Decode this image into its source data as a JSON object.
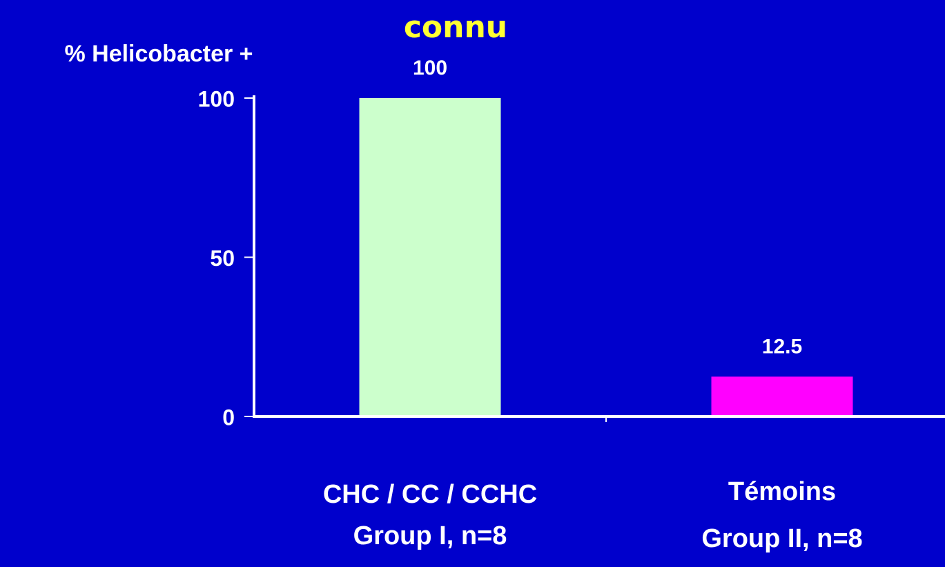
{
  "chart_data": {
    "type": "bar",
    "title": "connu",
    "y_label": "% Helicobacter +",
    "categories": [
      [
        "CHC / CC / CCHC",
        "Group I, n=8"
      ],
      [
        "Témoins",
        "Group II, n=8"
      ]
    ],
    "values": [
      100,
      12.5
    ],
    "colors": [
      "#ccffcc",
      "#ff00ff"
    ],
    "ylim": [
      0,
      100
    ],
    "yticks": [
      0,
      50,
      100
    ],
    "grid": false
  }
}
